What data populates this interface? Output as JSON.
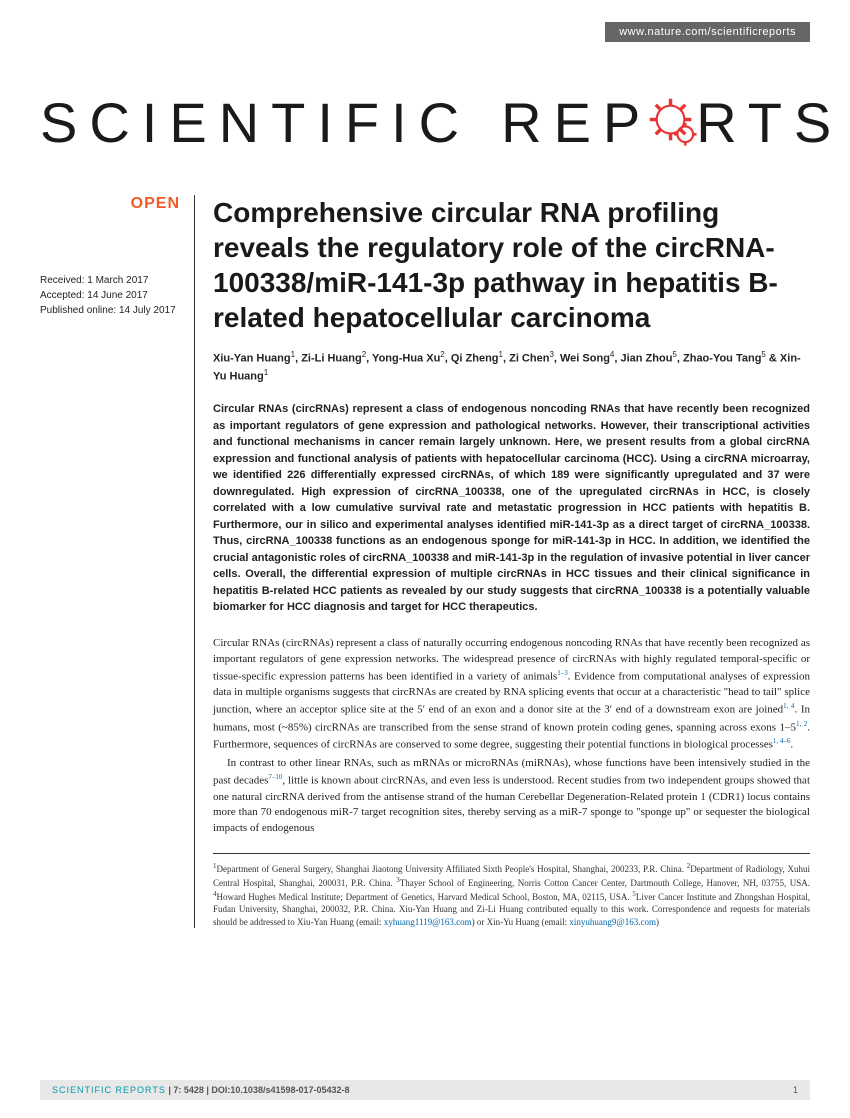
{
  "header": {
    "url": "www.nature.com/scientificreports",
    "logo_part1": "SCIENTIFIC",
    "logo_part2a": "REP",
    "logo_part2b": "RTS",
    "gear_color": "#e63535"
  },
  "sidebar": {
    "open_label": "OPEN",
    "received": "Received: 1 March 2017",
    "accepted": "Accepted: 14 June 2017",
    "published": "Published online: 14 July 2017"
  },
  "article": {
    "title": "Comprehensive circular RNA profiling reveals the regulatory role of the circRNA-100338/miR-141-3p pathway in hepatitis B-related hepatocellular carcinoma",
    "authors_html": "Xiu-Yan Huang<sup>1</sup>, Zi-Li Huang<sup>2</sup>, Yong-Hua Xu<sup>2</sup>, Qi Zheng<sup>1</sup>, Zi Chen<sup>3</sup>, Wei Song<sup>4</sup>, Jian Zhou<sup>5</sup>, Zhao-You Tang<sup>5</sup> & Xin-Yu Huang<sup>1</sup>",
    "abstract": "Circular RNAs (circRNAs) represent a class of endogenous noncoding RNAs that have recently been recognized as important regulators of gene expression and pathological networks. However, their transcriptional activities and functional mechanisms in cancer remain largely unknown. Here, we present results from a global circRNA expression and functional analysis of patients with hepatocellular carcinoma (HCC). Using a circRNA microarray, we identified 226 differentially expressed circRNAs, of which 189 were significantly upregulated and 37 were downregulated. High expression of circRNA_100338, one of the upregulated circRNAs in HCC, is closely correlated with a low cumulative survival rate and metastatic progression in HCC patients with hepatitis B. Furthermore, our in silico and experimental analyses identified miR-141-3p as a direct target of circRNA_100338. Thus, circRNA_100338 functions as an endogenous sponge for miR-141-3p in HCC. In addition, we identified the crucial antagonistic roles of circRNA_100338 and miR-141-3p in the regulation of invasive potential in liver cancer cells. Overall, the differential expression of multiple circRNAs in HCC tissues and their clinical significance in hepatitis B-related HCC patients as revealed by our study suggests that circRNA_100338 is a potentially valuable biomarker for HCC diagnosis and target for HCC therapeutics.",
    "body_p1": "Circular RNAs (circRNAs) represent a class of naturally occurring endogenous noncoding RNAs that have recently been recognized as important regulators of gene expression networks. The widespread presence of circRNAs with highly regulated temporal-specific or tissue-specific expression patterns has been identified in a variety of animals<sup>1–3</sup>. Evidence from computational analyses of expression data in multiple organisms suggests that circRNAs are created by RNA splicing events that occur at a characteristic \"head to tail\" splice junction, where an acceptor splice site at the 5′ end of an exon and a donor site at the 3′ end of a downstream exon are joined<sup>1, 4</sup>. In humans, most (~85%) circRNAs are transcribed from the sense strand of known protein coding genes, spanning across exons 1–5<sup>1, 2</sup>. Furthermore, sequences of circRNAs are conserved to some degree, suggesting their potential functions in biological processes<sup>1, 4–6</sup>.",
    "body_p2": "In contrast to other linear RNAs, such as mRNAs or microRNAs (miRNAs), whose functions have been intensively studied in the past decades<sup>7–10</sup>, little is known about circRNAs, and even less is understood. Recent studies from two independent groups showed that one natural circRNA derived from the antisense strand of the human Cerebellar Degeneration-Related protein 1 (CDR1) locus contains more than 70 endogenous miR-7 target recognition sites, thereby serving as a miR-7 sponge to \"sponge up\" or sequester the biological impacts of endogenous",
    "affiliations_html": "<sup>1</sup>Department of General Surgery, Shanghai Jiaotong University Affiliated Sixth People's Hospital, Shanghai, 200233, P.R. China. <sup>2</sup>Department of Radiology, Xuhui Central Hospital, Shanghai, 200031, P.R. China. <sup>3</sup>Thayer School of Engineering, Norris Cotton Cancer Center, Dartmouth College, Hanover, NH, 03755, USA. <sup>4</sup>Howard Hughes Medical Institute; Department of Genetics, Harvard Medical School, Boston, MA, 02115, USA. <sup>5</sup>Liver Cancer Institute and Zhongshan Hospital, Fudan University, Shanghai, 200032, P.R. China. Xiu-Yan Huang and Zi-Li Huang contributed equally to this work. Correspondence and requests for materials should be addressed to Xiu-Yan Huang (email: <a>xyhuang1119@163.com</a>) or Xin-Yu Huang (email: <a>xinyuhuang9@163.com</a>)"
  },
  "footer": {
    "journal": "SCIENTIFIC REPORTS",
    "citation": " | 7: 5428 | DOI:10.1038/s41598-017-05432-8",
    "page": "1"
  },
  "colors": {
    "accent_orange": "#f15a29",
    "link_blue": "#0066aa",
    "teal": "#0099aa",
    "gear_red": "#e63535",
    "top_bar_bg": "#666666",
    "footer_bg": "#e8e8e8"
  }
}
